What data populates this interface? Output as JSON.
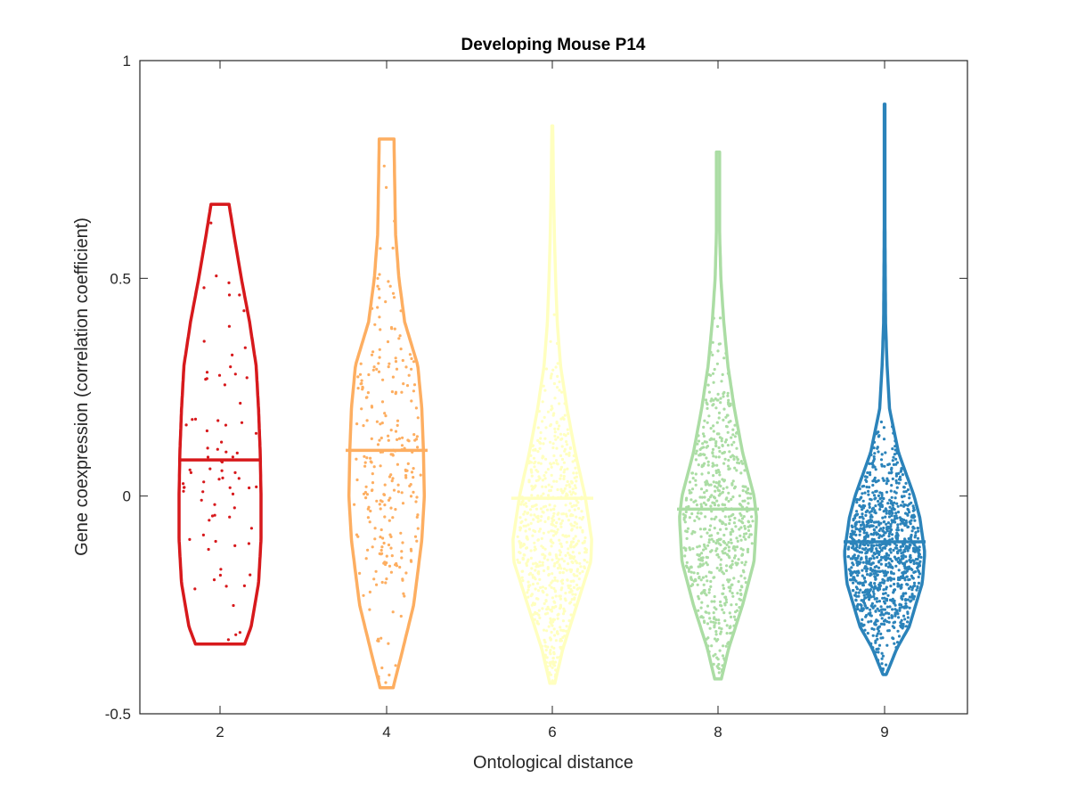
{
  "chart_data": {
    "type": "violin",
    "title": "Developing Mouse P14",
    "xlabel": "Ontological distance",
    "ylabel": "Gene coexpression (correlation coefficient)",
    "ylim": [
      -0.5,
      1
    ],
    "yticks": [
      "-0.5",
      "0",
      "0.5",
      "1"
    ],
    "categories": [
      "2",
      "4",
      "6",
      "8",
      "9"
    ],
    "grid": false,
    "series": [
      {
        "color": "#d7191c",
        "mean": 0.083,
        "min": -0.34,
        "max": 0.67,
        "n": 80,
        "mode": 0.1,
        "spread": 0.26,
        "maxHalfWidth": 0.5,
        "profile": [
          [
            -0.34,
            0.3
          ],
          [
            -0.3,
            0.38
          ],
          [
            -0.2,
            0.47
          ],
          [
            -0.1,
            0.5
          ],
          [
            0,
            0.5
          ],
          [
            0.1,
            0.49
          ],
          [
            0.2,
            0.47
          ],
          [
            0.3,
            0.44
          ],
          [
            0.4,
            0.36
          ],
          [
            0.5,
            0.26
          ],
          [
            0.6,
            0.17
          ],
          [
            0.67,
            0.11
          ]
        ]
      },
      {
        "color": "#fdae61",
        "mean": 0.105,
        "min": -0.44,
        "max": 0.82,
        "n": 260,
        "mode": 0.05,
        "spread": 0.22,
        "profile": [
          [
            -0.44,
            0.08
          ],
          [
            -0.35,
            0.2
          ],
          [
            -0.25,
            0.33
          ],
          [
            -0.1,
            0.43
          ],
          [
            0,
            0.46
          ],
          [
            0.1,
            0.45
          ],
          [
            0.2,
            0.43
          ],
          [
            0.3,
            0.38
          ],
          [
            0.4,
            0.22
          ],
          [
            0.5,
            0.15
          ],
          [
            0.6,
            0.11
          ],
          [
            0.7,
            0.1
          ],
          [
            0.82,
            0.09
          ]
        ]
      },
      {
        "color": "#ffffbf",
        "mean": -0.005,
        "min": -0.43,
        "max": 0.85,
        "n": 700,
        "mode": -0.12,
        "spread": 0.17,
        "profile": [
          [
            -0.43,
            0.03
          ],
          [
            -0.35,
            0.13
          ],
          [
            -0.25,
            0.3
          ],
          [
            -0.15,
            0.47
          ],
          [
            -0.1,
            0.48
          ],
          [
            0,
            0.4
          ],
          [
            0.1,
            0.28
          ],
          [
            0.2,
            0.18
          ],
          [
            0.3,
            0.1
          ],
          [
            0.4,
            0.06
          ],
          [
            0.5,
            0.04
          ],
          [
            0.6,
            0.025
          ],
          [
            0.7,
            0.015
          ],
          [
            0.85,
            0.005
          ]
        ]
      },
      {
        "color": "#abdda4",
        "mean": -0.03,
        "min": -0.42,
        "max": 0.79,
        "n": 650,
        "mode": -0.08,
        "spread": 0.18,
        "profile": [
          [
            -0.42,
            0.04
          ],
          [
            -0.35,
            0.13
          ],
          [
            -0.25,
            0.3
          ],
          [
            -0.15,
            0.44
          ],
          [
            -0.05,
            0.47
          ],
          [
            0,
            0.44
          ],
          [
            0.1,
            0.3
          ],
          [
            0.2,
            0.2
          ],
          [
            0.3,
            0.12
          ],
          [
            0.4,
            0.07
          ],
          [
            0.5,
            0.035
          ],
          [
            0.6,
            0.02
          ],
          [
            0.7,
            0.02
          ],
          [
            0.79,
            0.02
          ]
        ]
      },
      {
        "color": "#2b83ba",
        "mean": -0.105,
        "min": -0.41,
        "max": 0.9,
        "n": 1100,
        "mode": -0.13,
        "spread": 0.11,
        "profile": [
          [
            -0.41,
            0.02
          ],
          [
            -0.35,
            0.15
          ],
          [
            -0.3,
            0.3
          ],
          [
            -0.2,
            0.46
          ],
          [
            -0.13,
            0.49
          ],
          [
            -0.05,
            0.43
          ],
          [
            0,
            0.36
          ],
          [
            0.1,
            0.17
          ],
          [
            0.2,
            0.06
          ],
          [
            0.3,
            0.03
          ],
          [
            0.4,
            0.012
          ],
          [
            0.5,
            0.008
          ],
          [
            0.6,
            0.005
          ],
          [
            0.7,
            0.004
          ],
          [
            0.9,
            0.004
          ]
        ]
      }
    ]
  }
}
